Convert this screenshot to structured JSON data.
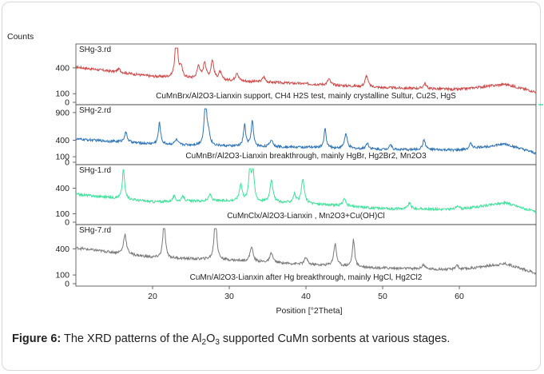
{
  "caption": {
    "label": "Figure 6:",
    "text_before": "The XRD patterns of the Al",
    "sub1": "2",
    "text_mid": "O",
    "sub2": "3",
    "text_after": " supported CuMn sorbents at various stages."
  },
  "chart_data": {
    "type": "line",
    "ylabel": "Counts",
    "xlabel": "Position [°2Theta]",
    "xlim": [
      10,
      70
    ],
    "x_ticks": [
      20,
      30,
      40,
      50,
      60
    ],
    "grid": false,
    "panels": [
      {
        "name": "SHg-3.rd",
        "color": "#cf4b4b",
        "annotation": "CuMnBrx/Al2O3-Lianxin support, CH4 H2S test, mainly crystalline Sultur, Cu2S,  HgS",
        "ylim": [
          0,
          650
        ],
        "y_ticks": [
          0,
          100,
          400
        ],
        "baseline": [
          [
            10,
            410
          ],
          [
            20,
            300
          ],
          [
            30,
            250
          ],
          [
            40,
            215
          ],
          [
            50,
            170
          ],
          [
            60,
            150
          ],
          [
            66,
            210
          ],
          [
            70,
            120
          ]
        ],
        "peaks": [
          [
            15.6,
            40
          ],
          [
            23.1,
            600
          ],
          [
            23.7,
            120
          ],
          [
            26.0,
            150
          ],
          [
            26.8,
            190
          ],
          [
            27.8,
            220
          ],
          [
            28.8,
            90
          ],
          [
            31.0,
            100
          ],
          [
            34.5,
            60
          ],
          [
            43.0,
            70
          ],
          [
            47.9,
            130
          ],
          [
            55.5,
            60
          ]
        ]
      },
      {
        "name": "SHg-2.rd",
        "color": "#2f74b5",
        "annotation": "CuMnBr/Al2O3-Lianxin breakthrough, mainly HgBr, Hg2Br2, Mn2O3",
        "ylim": [
          0,
          1000
        ],
        "y_ticks": [
          0,
          100,
          400,
          900
        ],
        "baseline": [
          [
            10,
            420
          ],
          [
            20,
            330
          ],
          [
            30,
            290
          ],
          [
            40,
            270
          ],
          [
            50,
            230
          ],
          [
            60,
            220
          ],
          [
            66,
            330
          ],
          [
            70,
            160
          ]
        ],
        "peaks": [
          [
            16.5,
            180
          ],
          [
            20.9,
            390
          ],
          [
            23.1,
            90
          ],
          [
            26.9,
            920
          ],
          [
            27.3,
            200
          ],
          [
            32.0,
            390
          ],
          [
            33.0,
            460
          ],
          [
            35.5,
            130
          ],
          [
            42.5,
            340
          ],
          [
            45.2,
            260
          ],
          [
            48.0,
            110
          ],
          [
            51.0,
            90
          ],
          [
            55.4,
            180
          ],
          [
            61.5,
            90
          ]
        ]
      },
      {
        "name": "SHg-1.rd",
        "color": "#3ee29a",
        "annotation": "CuMnClx/Al2O3-Lianxin , Mn2O3+Cu(OH)Cl",
        "ylim": [
          0,
          650
        ],
        "y_ticks": [
          0,
          100,
          400
        ],
        "baseline": [
          [
            10,
            330
          ],
          [
            20,
            240
          ],
          [
            30,
            250
          ],
          [
            40,
            220
          ],
          [
            50,
            160
          ],
          [
            60,
            150
          ],
          [
            66,
            230
          ],
          [
            70,
            120
          ]
        ],
        "peaks": [
          [
            16.2,
            350
          ],
          [
            22.8,
            60
          ],
          [
            24.0,
            60
          ],
          [
            27.5,
            80
          ],
          [
            31.5,
            200
          ],
          [
            32.7,
            420
          ],
          [
            33.1,
            360
          ],
          [
            35.5,
            270
          ],
          [
            38.5,
            100
          ],
          [
            39.6,
            280
          ],
          [
            45.0,
            90
          ],
          [
            53.5,
            70
          ],
          [
            59.8,
            50
          ]
        ]
      },
      {
        "name": "SHg-7.rd",
        "color": "#7a7a7a",
        "annotation": "CuMn/Al2O3-Lianxin after Hg breakthrough, mainly HgCl, Hg2Cl2",
        "ylim": [
          0,
          650
        ],
        "y_ticks": [
          0,
          100,
          400
        ],
        "baseline": [
          [
            10,
            410
          ],
          [
            20,
            300
          ],
          [
            30,
            270
          ],
          [
            40,
            220
          ],
          [
            50,
            180
          ],
          [
            60,
            160
          ],
          [
            66,
            230
          ],
          [
            70,
            120
          ]
        ],
        "peaks": [
          [
            16.4,
            230
          ],
          [
            21.5,
            460
          ],
          [
            28.2,
            580
          ],
          [
            32.9,
            170
          ],
          [
            35.5,
            110
          ],
          [
            40.0,
            80
          ],
          [
            43.8,
            250
          ],
          [
            46.2,
            310
          ],
          [
            55.3,
            50
          ],
          [
            59.7,
            60
          ]
        ]
      }
    ]
  }
}
